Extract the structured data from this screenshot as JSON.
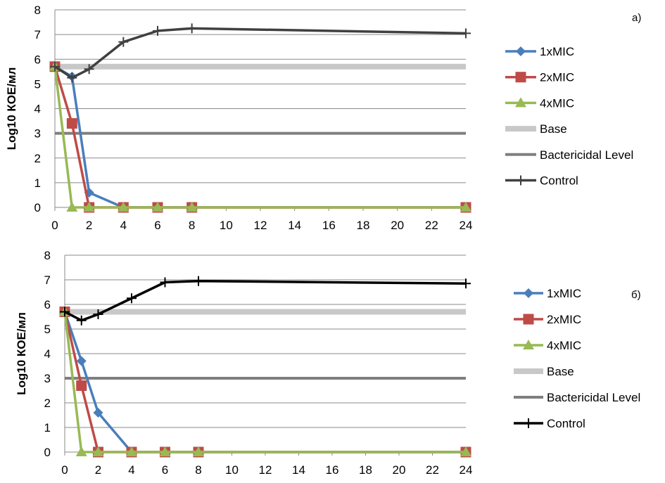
{
  "chart_data": [
    {
      "type": "line",
      "panel_label": "а)",
      "title": "",
      "xlabel": "",
      "ylabel": "Log10 КОЕ/мл",
      "x_ticks": [
        0,
        2,
        4,
        6,
        8,
        10,
        12,
        14,
        16,
        18,
        20,
        22,
        24
      ],
      "y_ticks": [
        0,
        1,
        2,
        3,
        4,
        5,
        6,
        7,
        8
      ],
      "xlim": [
        0,
        24
      ],
      "ylim": [
        0,
        8
      ],
      "grid": "horizontal",
      "legend_position": "right",
      "series": [
        {
          "name": "1xMIC",
          "marker": "diamond",
          "color": "#4a7ebb",
          "x": [
            0,
            1,
            2,
            4,
            6,
            8,
            24
          ],
          "y": [
            5.7,
            5.3,
            0.6,
            0,
            0,
            0,
            0
          ]
        },
        {
          "name": "2xMIC",
          "marker": "square",
          "color": "#be4b48",
          "x": [
            0,
            1,
            2,
            4,
            6,
            8,
            24
          ],
          "y": [
            5.7,
            3.4,
            0,
            0,
            0,
            0,
            0
          ]
        },
        {
          "name": "4xMIC",
          "marker": "triangle",
          "color": "#98b954",
          "x": [
            0,
            1,
            2,
            4,
            6,
            8,
            24
          ],
          "y": [
            5.7,
            0,
            0,
            0,
            0,
            0,
            0
          ]
        },
        {
          "name": "Base",
          "marker": "none",
          "color": "#c8c8c8",
          "kind": "hline",
          "width": 8,
          "x": [
            0,
            24
          ],
          "y": [
            5.7,
            5.7
          ]
        },
        {
          "name": "Bactericidal Level",
          "marker": "none",
          "color": "#7f7f7f",
          "kind": "hline",
          "width": 4,
          "x": [
            0,
            24
          ],
          "y": [
            3,
            3
          ]
        },
        {
          "name": "Control",
          "marker": "plus",
          "color": "#404040",
          "x": [
            0,
            1,
            2,
            4,
            6,
            8,
            24
          ],
          "y": [
            5.7,
            5.25,
            5.6,
            6.7,
            7.15,
            7.25,
            7.05
          ]
        }
      ]
    },
    {
      "type": "line",
      "panel_label": "б)",
      "title": "",
      "xlabel": "",
      "ylabel": "Log10 КОЕ/мл",
      "x_ticks": [
        0,
        2,
        4,
        6,
        8,
        10,
        12,
        14,
        16,
        18,
        20,
        22,
        24
      ],
      "y_ticks": [
        0,
        1,
        2,
        3,
        4,
        5,
        6,
        7,
        8
      ],
      "xlim": [
        0,
        24
      ],
      "ylim": [
        0,
        8
      ],
      "grid": "horizontal",
      "legend_position": "right",
      "series": [
        {
          "name": "1xMIC",
          "marker": "diamond",
          "color": "#4a7ebb",
          "x": [
            0,
            1,
            2,
            4,
            6,
            8,
            24
          ],
          "y": [
            5.7,
            3.7,
            1.6,
            0,
            0,
            0,
            0
          ]
        },
        {
          "name": "2xMIC",
          "marker": "square",
          "color": "#be4b48",
          "x": [
            0,
            1,
            2,
            4,
            6,
            8,
            24
          ],
          "y": [
            5.7,
            2.7,
            0,
            0,
            0,
            0,
            0
          ]
        },
        {
          "name": "4xMIC",
          "marker": "triangle",
          "color": "#98b954",
          "x": [
            0,
            1,
            2,
            4,
            6,
            8,
            24
          ],
          "y": [
            5.7,
            0,
            0,
            0,
            0,
            0,
            0
          ]
        },
        {
          "name": "Base",
          "marker": "none",
          "color": "#c8c8c8",
          "kind": "hline",
          "width": 8,
          "x": [
            0,
            24
          ],
          "y": [
            5.7,
            5.7
          ]
        },
        {
          "name": "Bactericidal Level",
          "marker": "none",
          "color": "#7f7f7f",
          "kind": "hline",
          "width": 4,
          "x": [
            0,
            24
          ],
          "y": [
            3,
            3
          ]
        },
        {
          "name": "Control",
          "marker": "plus",
          "color": "#000000",
          "x": [
            0,
            1,
            2,
            4,
            6,
            8,
            24
          ],
          "y": [
            5.7,
            5.35,
            5.6,
            6.25,
            6.9,
            6.95,
            6.85
          ]
        }
      ]
    }
  ]
}
